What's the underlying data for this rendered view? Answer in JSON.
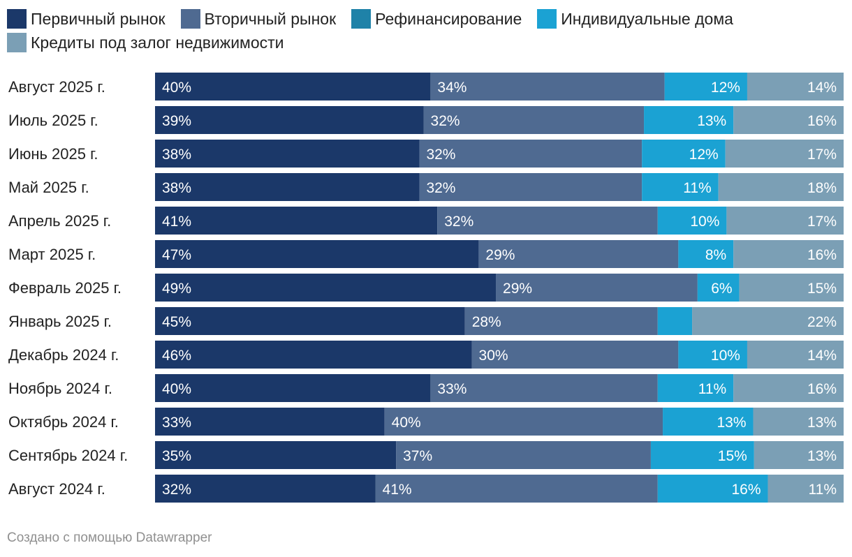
{
  "legend": {
    "rows": [
      [
        {
          "label": "Первичный рынок",
          "color": "#1b3869"
        },
        {
          "label": "Вторичный рынок",
          "color": "#4f6a91"
        },
        {
          "label": "Рефинансирование",
          "color": "#1f82a8"
        },
        {
          "label": "Индивидуальные дома",
          "color": "#1ba2d3"
        }
      ],
      [
        {
          "label": "Кредиты под залог недвижимости",
          "color": "#7b9fb5"
        }
      ]
    ]
  },
  "chart_data": {
    "type": "bar",
    "orientation": "horizontal",
    "stacked": true,
    "unit": "%",
    "xlim": [
      0,
      100
    ],
    "categories": [
      "Август 2025 г.",
      "Июль 2025 г.",
      "Июнь 2025 г.",
      "Май 2025 г.",
      "Апрель 2025 г.",
      "Март 2025 г.",
      "Февраль 2025 г.",
      "Январь 2025 г.",
      "Декабрь 2024 г.",
      "Ноябрь 2024 г.",
      "Октябрь 2024 г.",
      "Сентябрь 2024 г.",
      "Август 2024 г."
    ],
    "series": [
      {
        "name": "Первичный рынок",
        "color": "#1b3869",
        "label_align": "left",
        "values": [
          40,
          39,
          38,
          38,
          41,
          47,
          49,
          45,
          46,
          40,
          33,
          35,
          32
        ],
        "labels": [
          "40%",
          "39%",
          "38%",
          "38%",
          "41%",
          "47%",
          "49%",
          "45%",
          "46%",
          "40%",
          "33%",
          "35%",
          "32%"
        ]
      },
      {
        "name": "Вторичный рынок",
        "color": "#4f6a91",
        "label_align": "left",
        "values": [
          34,
          32,
          32,
          32,
          32,
          29,
          29,
          28,
          30,
          33,
          40,
          37,
          41
        ],
        "labels": [
          "34%",
          "32%",
          "32%",
          "32%",
          "32%",
          "29%",
          "29%",
          "28%",
          "30%",
          "33%",
          "40%",
          "37%",
          "41%"
        ]
      },
      {
        "name": "Рефинансирование",
        "color": "#1f82a8",
        "label_align": "right",
        "values": [
          0,
          0,
          0,
          0,
          0,
          0,
          0,
          0,
          0,
          0,
          0,
          0,
          0
        ],
        "labels": [
          "",
          "",
          "",
          "",
          "",
          "",
          "",
          "",
          "",
          "",
          "",
          "",
          ""
        ]
      },
      {
        "name": "Индивидуальные дома",
        "color": "#1ba2d3",
        "label_align": "right",
        "values": [
          12,
          13,
          12,
          11,
          10,
          8,
          6,
          5,
          10,
          11,
          13,
          15,
          16
        ],
        "labels": [
          "12%",
          "13%",
          "12%",
          "11%",
          "10%",
          "8%",
          "6%",
          "",
          "10%",
          "11%",
          "13%",
          "15%",
          "16%"
        ]
      },
      {
        "name": "Кредиты под залог недвижимости",
        "color": "#7b9fb5",
        "label_align": "right",
        "values": [
          14,
          16,
          17,
          18,
          17,
          16,
          15,
          22,
          14,
          16,
          13,
          13,
          11
        ],
        "labels": [
          "14%",
          "16%",
          "17%",
          "18%",
          "17%",
          "16%",
          "15%",
          "22%",
          "14%",
          "16%",
          "13%",
          "13%",
          "11%"
        ]
      }
    ]
  },
  "footer": {
    "text": "Создано с помощью Datawrapper"
  }
}
